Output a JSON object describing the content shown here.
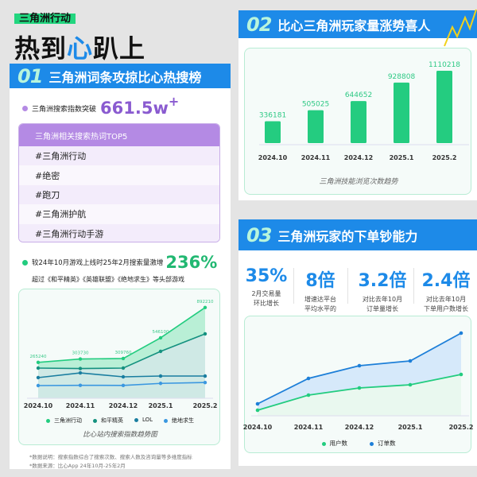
{
  "header": {
    "tag": "三角洲行动",
    "title_a": "热到",
    "title_b": "心",
    "title_c": "趴上"
  },
  "sec1": {
    "num": "01",
    "title": "三角洲词条攻掠比心热搜榜",
    "index_text": "三角洲搜索指数突破",
    "index_value": "661.5w",
    "index_sup": "+",
    "table": {
      "header": "三角洲相关搜索热词TOP5",
      "rows": [
        "#三角洲行动",
        "#绝密",
        "#跑刀",
        "#三角洲护航",
        "#三角洲行动手游"
      ]
    },
    "growth_text": "较24年10月游戏上线时25年2月搜索量激增",
    "growth_value": "236%",
    "growth_sub": "超过《和平精英》《英雄联盟》《绝地求生》等头部游戏",
    "notes": [
      "*数据说明：搜索指数综合了搜索次数、搜索人数及咨询量等多维度指标",
      "*数据来源：比心App 24年10月-25年2月"
    ]
  },
  "sec2": {
    "num": "02",
    "title": "比心三角洲玩家量涨势喜人"
  },
  "sec3": {
    "num": "03",
    "title": "三角洲玩家的下单钞能力",
    "stats": [
      {
        "value": "35%",
        "l1": "2月交易量",
        "l2": "环比增长"
      },
      {
        "value": "8倍",
        "l1": "增速达平台",
        "l2": "平均水平的"
      },
      {
        "value": "3.2倍",
        "l1": "对比去年10月",
        "l2": "订单量增长"
      },
      {
        "value": "2.4倍",
        "l1": "对比去年10月",
        "l2": "下单用户数增长"
      }
    ]
  },
  "colors": {
    "blue": "#1d8ae8",
    "green": "#22cc7f",
    "purple": "#b48ae4",
    "teal": "#14917f",
    "lol": "#1a7ea0",
    "pubg": "#3a97e0"
  },
  "chart_data": [
    {
      "type": "area",
      "title": "比心站内搜索指数趋势图",
      "categories": [
        "2024.10",
        "2024.11",
        "2024.12",
        "2025.1",
        "2025.2"
      ],
      "series": [
        {
          "name": "三角洲行动",
          "values": [
            265240,
            303730,
            309760,
            546100,
            892210
          ],
          "labels": [
            "265240",
            "303730",
            "309760",
            "546100",
            "892210"
          ]
        },
        {
          "name": "和平精英",
          "values": [
            200000,
            195000,
            200000,
            391000,
            591000
          ]
        },
        {
          "name": "LOL",
          "values": [
            91000,
            145000,
            100000,
            109000,
            109000
          ]
        },
        {
          "name": "绝地求生",
          "values": [
            0,
            3000,
            2000,
            25000,
            35000
          ]
        }
      ],
      "legend": "bottom",
      "grid": false
    },
    {
      "type": "bar",
      "title": "三角洲技能浏览次数趋势",
      "categories": [
        "2024.10",
        "2024.11",
        "2024.12",
        "2025.1",
        "2025.2"
      ],
      "values": [
        336181,
        505025,
        644652,
        928808,
        1110218
      ],
      "labels": [
        "336181",
        "505025",
        "644652",
        "928808",
        "1110218"
      ],
      "ylim": [
        0,
        1110218
      ],
      "grid": false
    },
    {
      "type": "area",
      "categories": [
        "2024.10",
        "2024.11",
        "2024.12",
        "2025.1",
        "2025.2"
      ],
      "series": [
        {
          "name": "用户数",
          "values": [
            7,
            26,
            35,
            39,
            52
          ]
        },
        {
          "name": "订单数",
          "values": [
            15,
            47,
            63,
            69,
            104
          ]
        }
      ],
      "legend": "bottom",
      "grid": false
    }
  ]
}
